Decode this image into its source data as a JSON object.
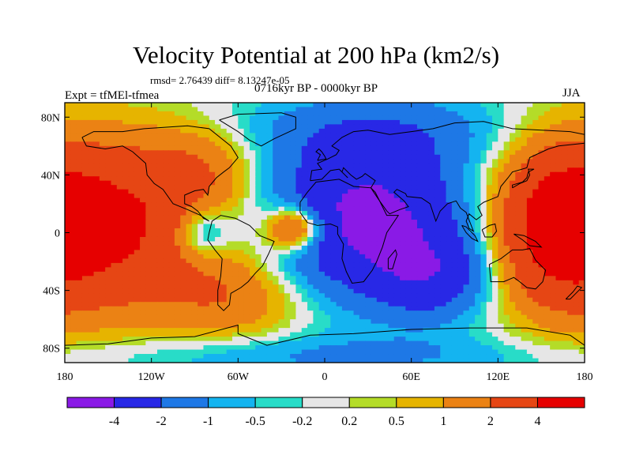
{
  "chart_data": {
    "type": "heatmap",
    "title": "Velocity Potential at 200 hPa (km2/s)",
    "stats_text": "rmsd= 2.76439 diff= 8.13247e-05",
    "left_label": "Expt = tfMEl-tfmea",
    "center_label": "0716kyr BP - 0000kyr BP",
    "right_label": "JJA",
    "x_ticks": [
      "180",
      "120W",
      "60W",
      "0",
      "60E",
      "120E",
      "180"
    ],
    "y_ticks": [
      "80N",
      "40N",
      "0",
      "40S",
      "80S"
    ],
    "xlim": [
      -180,
      180
    ],
    "ylim": [
      -90,
      90
    ],
    "colorbar": {
      "labels": [
        "-4",
        "-2",
        "-1",
        "-0.5",
        "-0.2",
        "0.2",
        "0.5",
        "1",
        "2",
        "4"
      ],
      "colors": [
        "#8a1ae6",
        "#2828e6",
        "#1e78e6",
        "#14b4f0",
        "#28dcc8",
        "#e6e6e6",
        "#b4dc28",
        "#e6b400",
        "#eb8214",
        "#e64614",
        "#e60000"
      ]
    },
    "centers": [
      {
        "lon": 30,
        "lat": 10,
        "value": -4.6,
        "sx": 48,
        "sy": 36
      },
      {
        "lon": 75,
        "lat": -30,
        "value": -2.5,
        "sx": 28,
        "sy": 20
      },
      {
        "lon": 35,
        "lat": 70,
        "value": -1.3,
        "sx": 70,
        "sy": 18
      },
      {
        "lon": -85,
        "lat": 0,
        "value": -2.3,
        "sx": 14,
        "sy": 13
      },
      {
        "lon": -150,
        "lat": 5,
        "value": 4.5,
        "sx": 55,
        "sy": 42
      },
      {
        "lon": 160,
        "lat": 5,
        "value": 3.5,
        "sx": 28,
        "sy": 38
      },
      {
        "lon": -20,
        "lat": 3,
        "value": 4.2,
        "sx": 14,
        "sy": 11
      },
      {
        "lon": -60,
        "lat": -45,
        "value": 1.6,
        "sx": 35,
        "sy": 20
      },
      {
        "lon": -85,
        "lat": 45,
        "value": 1.2,
        "sx": 28,
        "sy": 20
      },
      {
        "lon": 0,
        "lat": -85,
        "value": -1.0,
        "sx": 120,
        "sy": 10
      }
    ]
  }
}
